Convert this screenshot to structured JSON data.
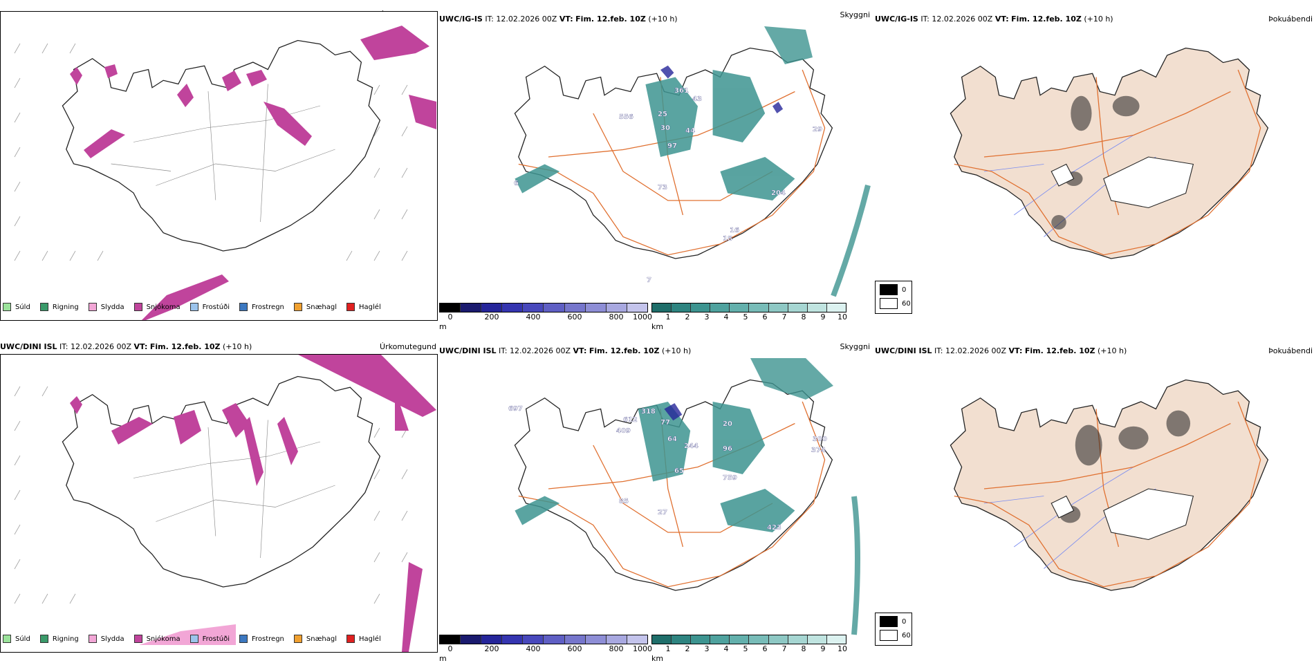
{
  "rows": [
    {
      "model": "UWC/IG-IS",
      "it_label": "IT:",
      "it_value": "12.02.2026 00Z",
      "vt_label": "VT:",
      "vt_value": "Fim. 12.feb. 10Z",
      "lead": "(+10 h)"
    },
    {
      "model": "UWC/DINI ISL",
      "it_label": "IT:",
      "it_value": "12.02.2026 00Z",
      "vt_label": "VT:",
      "vt_value": "Fim. 12.feb. 10Z",
      "lead": "(+10 h)"
    }
  ],
  "panel_titles": {
    "precip": "Úrkomutegund",
    "cloud": "Skyggni",
    "fog": "Þokuábendi"
  },
  "precip_legend": [
    {
      "label": "Súld",
      "color": "#9be39b"
    },
    {
      "label": "Rigning",
      "color": "#3a9a6a"
    },
    {
      "label": "Slydda",
      "color": "#f2a6d6"
    },
    {
      "label": "Snjókoma",
      "color": "#c0449c"
    },
    {
      "label": "Frostúði",
      "color": "#9cc4ec"
    },
    {
      "label": "Frostregn",
      "color": "#3c78c0"
    },
    {
      "label": "Snæhagl",
      "color": "#f0a030"
    },
    {
      "label": "Haglél",
      "color": "#e02020"
    }
  ],
  "elevation_bar": {
    "unit": "m",
    "ticks": [
      "0",
      "200",
      "400",
      "600",
      "800",
      "1000"
    ],
    "colors": [
      "#000000",
      "#1a1a6e",
      "#25259a",
      "#3535b0",
      "#4848bc",
      "#5f5fc4",
      "#7676cc",
      "#8e8ed6",
      "#a8a8e0",
      "#c4c4ec"
    ]
  },
  "visibility_bar": {
    "unit": "km",
    "ticks": [
      "1",
      "2",
      "3",
      "4",
      "5",
      "6",
      "7",
      "8",
      "9",
      "10"
    ],
    "colors": [
      "#1f6e6a",
      "#2e8480",
      "#3d9490",
      "#4fa29e",
      "#63b0ac",
      "#78bcb8",
      "#8ec8c4",
      "#a6d6d2",
      "#c0e4e0",
      "#dcf2f0"
    ]
  },
  "fog_legend": [
    {
      "label": "0",
      "color": "#000000"
    },
    {
      "label": "60",
      "color": "#ffffff"
    }
  ],
  "map_labels": {
    "top": [
      "361",
      "43",
      "556",
      "25",
      "30",
      "44",
      "97",
      "73",
      "16",
      "29",
      "204",
      "18",
      "6",
      "7"
    ],
    "bottom": [
      "697",
      "612",
      "318",
      "409",
      "77",
      "64",
      "244",
      "20",
      "96",
      "65",
      "759",
      "27",
      "85",
      "423",
      "300",
      "374"
    ]
  },
  "colors": {
    "land_fog": "#f2dfd0",
    "road": "#e07030",
    "river": "#7a8cf0",
    "snow": "#c0449c",
    "vis": "#3d9490",
    "elev": "#25259a"
  }
}
